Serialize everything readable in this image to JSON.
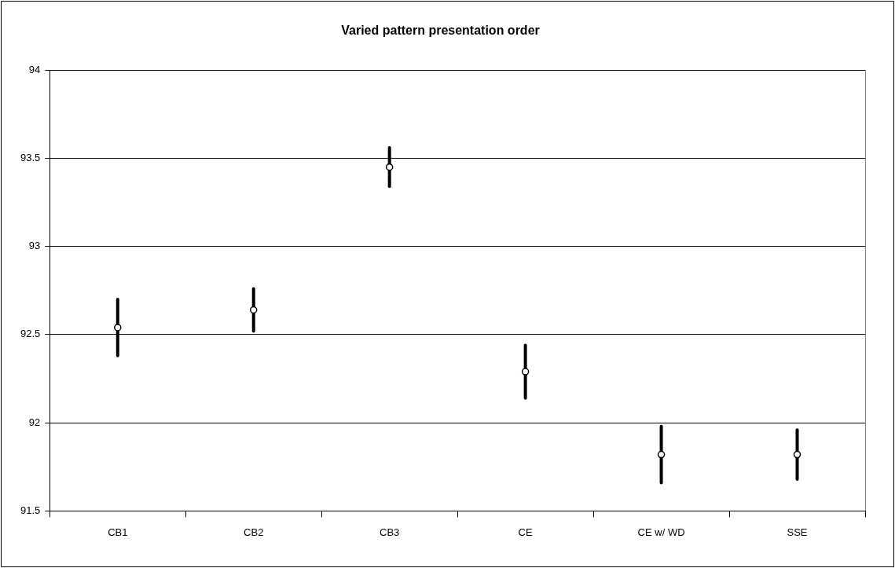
{
  "chart_data": {
    "type": "scatter",
    "title": "Varied pattern presentation order",
    "categories": [
      "CB1",
      "CB2",
      "CB3",
      "CE",
      "CE w/ WD",
      "SSE"
    ],
    "values": [
      92.54,
      92.64,
      93.45,
      92.29,
      91.82,
      91.82
    ],
    "errors": [
      0.16,
      0.12,
      0.11,
      0.15,
      0.16,
      0.14
    ],
    "color": "#000000",
    "ylim": [
      91.5,
      94
    ],
    "yticks": [
      91.5,
      92,
      92.5,
      93,
      93.5,
      94
    ],
    "grid": "y",
    "legend": false,
    "marker": "circle"
  }
}
